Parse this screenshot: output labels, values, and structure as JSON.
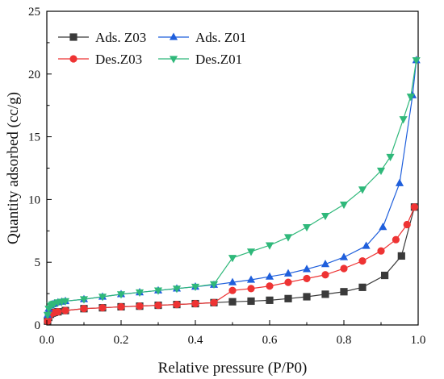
{
  "chart_data": {
    "type": "line",
    "xlabel": "Relative pressure (P/P0)",
    "ylabel": "Quantity adsorbed (cc/g)",
    "xlim": [
      0.0,
      1.0
    ],
    "ylim": [
      0,
      25
    ],
    "xticks": [
      "0.0",
      "0.2",
      "0.4",
      "0.6",
      "0.8",
      "1.0"
    ],
    "yticks": [
      "0",
      "5",
      "10",
      "15",
      "20",
      "25"
    ],
    "grid": false,
    "legend_position": "top-left",
    "series": [
      {
        "name": "Ads. Z03",
        "color": "#3a3a3a",
        "marker": "square",
        "x": [
          0.002,
          0.005,
          0.01,
          0.015,
          0.02,
          0.03,
          0.05,
          0.1,
          0.15,
          0.2,
          0.25,
          0.3,
          0.35,
          0.4,
          0.45,
          0.5,
          0.55,
          0.6,
          0.65,
          0.7,
          0.75,
          0.8,
          0.85,
          0.91,
          0.955,
          0.99
        ],
        "y": [
          0.3,
          0.6,
          0.85,
          0.95,
          1.0,
          1.05,
          1.15,
          1.3,
          1.37,
          1.45,
          1.5,
          1.57,
          1.63,
          1.7,
          1.78,
          1.85,
          1.9,
          1.97,
          2.1,
          2.25,
          2.45,
          2.65,
          3.0,
          3.95,
          5.5,
          9.4
        ]
      },
      {
        "name": "Des.Z03",
        "color": "#ee3333",
        "marker": "circle",
        "x": [
          0.002,
          0.005,
          0.01,
          0.015,
          0.02,
          0.03,
          0.05,
          0.1,
          0.15,
          0.2,
          0.25,
          0.3,
          0.35,
          0.4,
          0.45,
          0.5,
          0.55,
          0.6,
          0.65,
          0.7,
          0.75,
          0.8,
          0.85,
          0.9,
          0.94,
          0.97,
          0.99
        ],
        "y": [
          0.3,
          0.6,
          0.85,
          0.95,
          1.0,
          1.05,
          1.15,
          1.3,
          1.37,
          1.45,
          1.5,
          1.57,
          1.63,
          1.7,
          1.78,
          2.75,
          2.9,
          3.1,
          3.4,
          3.7,
          4.0,
          4.5,
          5.1,
          5.9,
          6.8,
          8.0,
          9.4
        ]
      },
      {
        "name": "Ads. Z01",
        "color": "#1f5fdc",
        "marker": "triangle-up",
        "x": [
          0.002,
          0.005,
          0.01,
          0.015,
          0.02,
          0.03,
          0.04,
          0.05,
          0.1,
          0.15,
          0.2,
          0.25,
          0.3,
          0.35,
          0.4,
          0.45,
          0.5,
          0.55,
          0.6,
          0.65,
          0.7,
          0.75,
          0.8,
          0.86,
          0.905,
          0.95,
          0.985,
          0.995
        ],
        "y": [
          0.8,
          1.3,
          1.55,
          1.65,
          1.7,
          1.8,
          1.85,
          1.9,
          2.05,
          2.25,
          2.45,
          2.6,
          2.75,
          2.9,
          3.05,
          3.2,
          3.4,
          3.6,
          3.85,
          4.1,
          4.45,
          4.85,
          5.4,
          6.3,
          7.8,
          11.3,
          18.3,
          21.1
        ]
      },
      {
        "name": "Des.Z01",
        "color": "#2fb87a",
        "marker": "triangle-down",
        "x": [
          0.002,
          0.005,
          0.01,
          0.015,
          0.02,
          0.03,
          0.04,
          0.05,
          0.1,
          0.15,
          0.2,
          0.25,
          0.3,
          0.35,
          0.4,
          0.45,
          0.5,
          0.55,
          0.6,
          0.65,
          0.7,
          0.75,
          0.8,
          0.85,
          0.9,
          0.925,
          0.96,
          0.98,
          0.995
        ],
        "y": [
          0.8,
          1.3,
          1.55,
          1.65,
          1.7,
          1.8,
          1.85,
          1.9,
          2.05,
          2.25,
          2.45,
          2.6,
          2.75,
          2.9,
          3.05,
          3.25,
          5.35,
          5.85,
          6.35,
          7.0,
          7.8,
          8.7,
          9.6,
          10.8,
          12.3,
          13.4,
          16.4,
          18.2,
          21.1
        ]
      }
    ]
  }
}
